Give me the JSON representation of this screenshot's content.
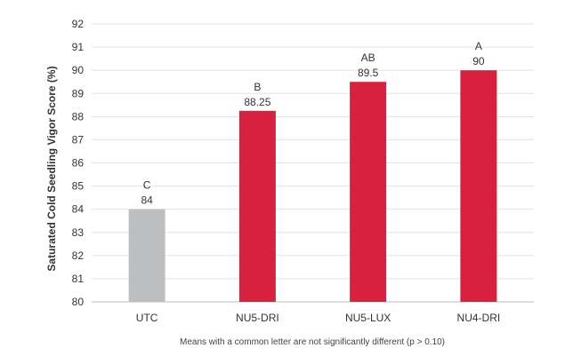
{
  "chart_data": {
    "type": "bar",
    "categories": [
      "UTC",
      "NU5-DRI",
      "NU5-LUX",
      "NU4-DRI"
    ],
    "values": [
      84,
      88.25,
      89.5,
      90
    ],
    "value_labels": [
      "84",
      "88.25",
      "89.5",
      "90"
    ],
    "letters": [
      "C",
      "B",
      "AB",
      "A"
    ],
    "bar_colors": [
      "#bcbec0",
      "#d9203f",
      "#d9203f",
      "#d9203f"
    ],
    "ylabel": "Saturated Cold Seedling Vigor Score (%)",
    "ylim": [
      80,
      92
    ],
    "yticks": [
      80,
      81,
      82,
      83,
      84,
      85,
      86,
      87,
      88,
      89,
      90,
      91,
      92
    ],
    "grid": true,
    "footnote": "Means with a common letter are not significantly different (p > 0.10)"
  }
}
